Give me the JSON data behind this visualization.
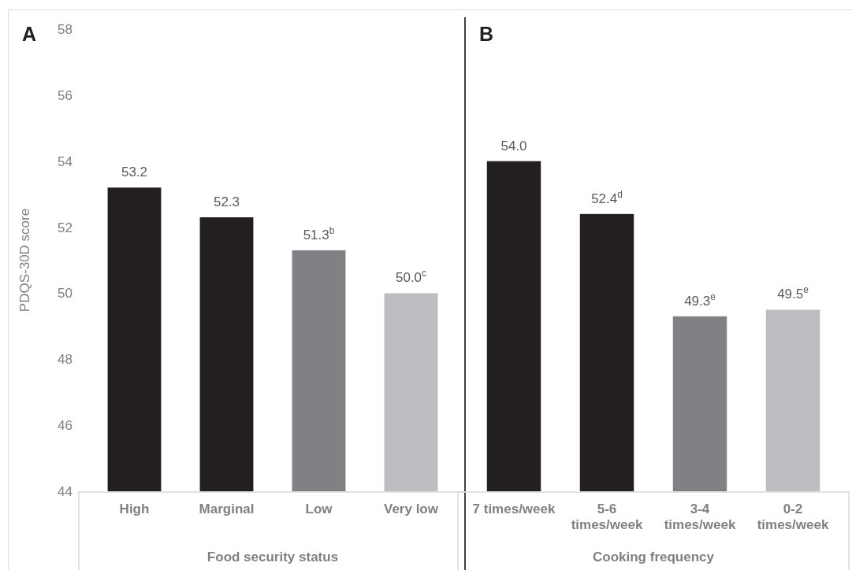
{
  "chart_data": [
    {
      "type": "bar",
      "title": "A",
      "xlabel": "Food security status",
      "ylabel": "PDQS-30D score",
      "categories": [
        "High",
        "Marginal",
        "Low",
        "Very low"
      ],
      "values": [
        53.2,
        52.3,
        51.3,
        50.0
      ],
      "colors": [
        "#231f20",
        "#231f20",
        "#808184",
        "#bcbdc0"
      ],
      "value_labels": [
        "53.2",
        "52.3",
        "51.3$^{b}$",
        "50.0$^{c}$"
      ],
      "ylim": [
        44,
        58
      ],
      "yticks": [
        44,
        46,
        48,
        50,
        52,
        54,
        56,
        58
      ],
      "grid": false
    },
    {
      "type": "bar",
      "title": "B",
      "xlabel": "Cooking frequency",
      "categories": [
        "7 times/week",
        "5-6 times/week",
        "3-4 times/week",
        "0-2 times/week"
      ],
      "values": [
        54.0,
        52.4,
        49.3,
        49.5
      ],
      "colors": [
        "#231f20",
        "#231f20",
        "#808184",
        "#bcbdc0"
      ],
      "value_labels": [
        "54.0",
        "52.4$^{d}$",
        "49.3$^{e}$",
        "49.5$^{e}$"
      ],
      "ylim": [
        44,
        58
      ],
      "yticks": [
        44,
        46,
        48,
        50,
        52,
        54,
        56,
        58
      ],
      "tick_labels": "x",
      "grid": false
    }
  ]
}
